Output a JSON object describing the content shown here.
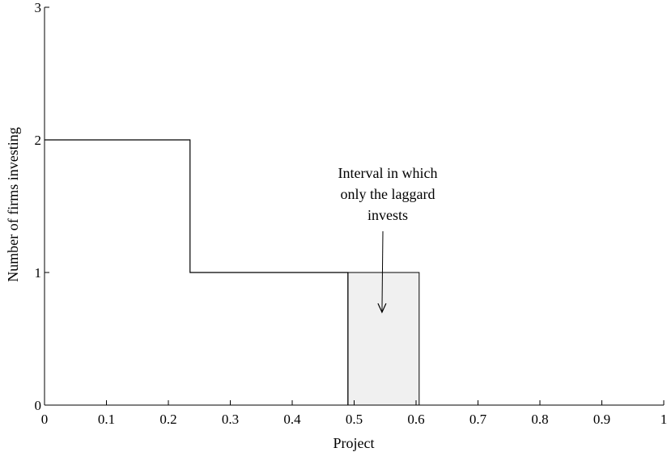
{
  "chart_data": {
    "type": "line",
    "title": "",
    "xlabel": "Project",
    "ylabel": "Number of firms investing",
    "xlim": [
      0,
      1
    ],
    "ylim": [
      0,
      3
    ],
    "xticks": [
      0,
      0.1,
      0.2,
      0.3,
      0.4,
      0.5,
      0.6,
      0.7,
      0.8,
      0.9,
      1
    ],
    "xtick_labels": [
      "0",
      "0.1",
      "0.2",
      "0.3",
      "0.4",
      "0.5",
      "0.6",
      "0.7",
      "0.8",
      "0.9",
      "1"
    ],
    "yticks": [
      0,
      1,
      2,
      3
    ],
    "ytick_labels": [
      "0",
      "1",
      "2",
      "3"
    ],
    "grid": false,
    "series": [
      {
        "style": "step",
        "x": [
          0,
          0.235,
          0.235,
          0.49,
          0.49
        ],
        "y": [
          2,
          2,
          1,
          1,
          0
        ]
      }
    ],
    "shaded_interval": {
      "x": [
        0.49,
        0.605
      ],
      "y": [
        0,
        1
      ],
      "fill": "#f0f0f0"
    },
    "annotation": {
      "lines": [
        "Interval in which",
        "only the laggard",
        "invests"
      ],
      "arrow_target": [
        0.545,
        0.7
      ]
    }
  }
}
